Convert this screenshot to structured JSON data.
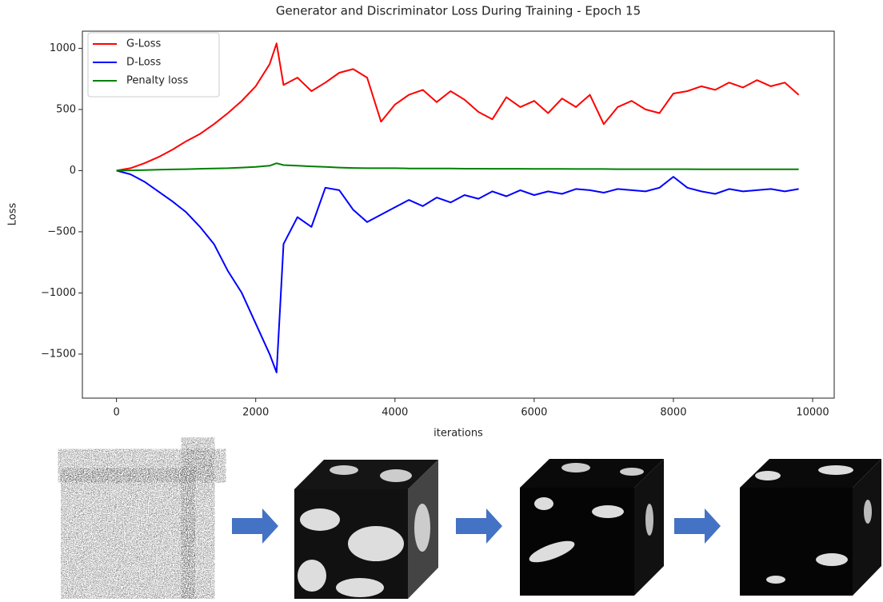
{
  "chart_data": {
    "type": "line",
    "title": "Generator and Discriminator Loss During Training - Epoch 15",
    "x_label": "iterations",
    "y_label": "Loss",
    "x": [
      0,
      200,
      400,
      600,
      800,
      1000,
      1200,
      1400,
      1600,
      1800,
      2000,
      2200,
      2300,
      2400,
      2600,
      2800,
      3000,
      3200,
      3400,
      3600,
      3800,
      4000,
      4200,
      4400,
      4600,
      4800,
      5000,
      5200,
      5400,
      5600,
      5800,
      6000,
      6200,
      6400,
      6600,
      6800,
      7000,
      7200,
      7400,
      7600,
      7800,
      8000,
      8200,
      8400,
      8600,
      8800,
      9000,
      9200,
      9400,
      9600,
      9800
    ],
    "series": [
      {
        "name": "G-Loss",
        "color": "#ff0000",
        "values": [
          0,
          20,
          60,
          110,
          170,
          240,
          300,
          380,
          470,
          570,
          690,
          870,
          1040,
          700,
          760,
          650,
          720,
          800,
          830,
          760,
          400,
          540,
          620,
          660,
          560,
          650,
          580,
          480,
          420,
          600,
          520,
          570,
          470,
          590,
          520,
          620,
          380,
          520,
          570,
          500,
          470,
          630,
          650,
          690,
          660,
          720,
          680,
          740,
          690,
          720,
          620
        ]
      },
      {
        "name": "D-Loss",
        "color": "#0000ff",
        "values": [
          0,
          -30,
          -90,
          -170,
          -250,
          -340,
          -460,
          -600,
          -820,
          -1000,
          -1250,
          -1500,
          -1650,
          -600,
          -380,
          -460,
          -140,
          -160,
          -320,
          -420,
          -360,
          -300,
          -240,
          -290,
          -220,
          -260,
          -200,
          -230,
          -170,
          -210,
          -160,
          -200,
          -170,
          -190,
          -150,
          -160,
          -180,
          -150,
          -160,
          -170,
          -140,
          -50,
          -140,
          -170,
          -190,
          -150,
          -170,
          -160,
          -150,
          -170,
          -150
        ]
      },
      {
        "name": "Penalty loss",
        "color": "#008000",
        "values": [
          0,
          2,
          5,
          8,
          10,
          12,
          15,
          18,
          20,
          25,
          30,
          40,
          60,
          45,
          40,
          35,
          30,
          25,
          22,
          20,
          20,
          20,
          18,
          18,
          17,
          17,
          16,
          16,
          15,
          15,
          15,
          14,
          14,
          14,
          13,
          13,
          13,
          12,
          12,
          12,
          12,
          12,
          12,
          11,
          11,
          11,
          11,
          11,
          11,
          11,
          11
        ]
      }
    ],
    "xlim": [
      -490,
      10310
    ],
    "ylim": [
      -1860,
      1140
    ],
    "xticks": [
      0,
      2000,
      4000,
      6000,
      8000,
      10000
    ],
    "yticks": [
      {
        "value": -1500,
        "label": "−1500"
      },
      {
        "value": -1000,
        "label": "−1000"
      },
      {
        "value": -500,
        "label": "−500"
      },
      0,
      500,
      1000
    ],
    "legend": "upper left"
  }
}
